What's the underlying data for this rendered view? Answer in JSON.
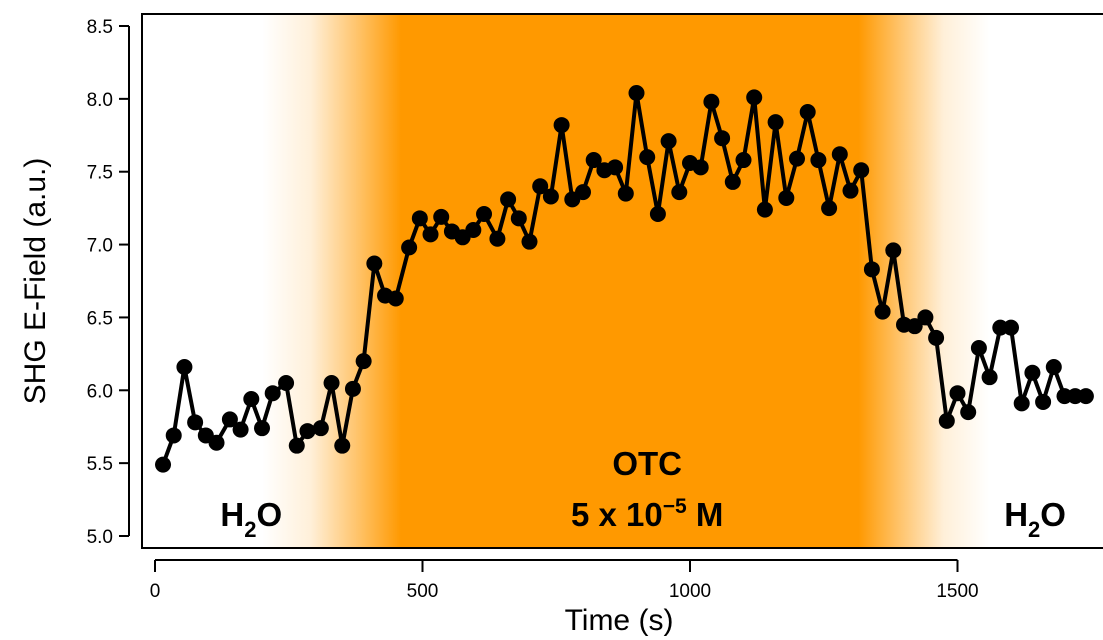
{
  "chart_data": {
    "type": "line",
    "xlabel": "Time (s)",
    "ylabel": "SHG E-Field (a.u.)",
    "xlim": [
      -20,
      1750
    ],
    "ylim": [
      4.97,
      8.6
    ],
    "xticks": [
      0,
      500,
      1000,
      1500
    ],
    "xtick_labels": [
      "0",
      "500",
      "1000",
      "1500"
    ],
    "yticks": [
      5.0,
      5.5,
      6.0,
      6.5,
      7.0,
      7.5,
      8.0,
      8.5
    ],
    "ytick_labels": [
      "5.0",
      "5.5",
      "6.0",
      "6.5",
      "7.0",
      "7.5",
      "8.0",
      "8.5"
    ],
    "grid": false,
    "series": [
      {
        "marker": "circle",
        "color": "#000000",
        "x": [
          15,
          35,
          55,
          75,
          95,
          115,
          140,
          160,
          180,
          200,
          220,
          245,
          265,
          285,
          310,
          330,
          350,
          370,
          390,
          410,
          430,
          450,
          475,
          495,
          515,
          535,
          555,
          575,
          595,
          615,
          640,
          660,
          680,
          700,
          720,
          740,
          760,
          780,
          800,
          820,
          840,
          860,
          880,
          900,
          920,
          940,
          960,
          980,
          1000,
          1020,
          1040,
          1060,
          1080,
          1100,
          1120,
          1140,
          1160,
          1180,
          1200,
          1220,
          1240,
          1260,
          1280,
          1300,
          1320,
          1340,
          1360,
          1380,
          1400,
          1420,
          1440,
          1460,
          1480,
          1500,
          1520,
          1540,
          1560,
          1580,
          1600,
          1620,
          1640,
          1660,
          1680,
          1700,
          1720,
          1740
        ],
        "y": [
          5.49,
          5.69,
          6.16,
          5.78,
          5.69,
          5.64,
          5.8,
          5.73,
          5.94,
          5.74,
          5.98,
          6.05,
          5.62,
          5.72,
          5.74,
          6.05,
          5.62,
          6.01,
          6.2,
          6.87,
          6.65,
          6.63,
          6.98,
          7.18,
          7.07,
          7.19,
          7.09,
          7.05,
          7.1,
          7.21,
          7.04,
          7.31,
          7.18,
          7.02,
          7.4,
          7.33,
          7.82,
          7.31,
          7.36,
          7.58,
          7.51,
          7.53,
          7.35,
          8.04,
          7.6,
          7.21,
          7.71,
          7.36,
          7.56,
          7.53,
          7.98,
          7.73,
          7.43,
          7.58,
          8.01,
          7.24,
          7.84,
          7.32,
          7.59,
          7.91,
          7.58,
          7.25,
          7.62,
          7.37,
          7.51,
          6.83,
          6.54,
          6.96,
          6.45,
          6.44,
          6.5,
          6.36,
          5.79,
          5.98,
          5.85,
          6.29,
          6.09,
          6.43,
          6.43,
          5.91,
          6.12,
          5.92,
          6.16,
          5.96,
          5.96,
          5.96
        ]
      }
    ],
    "regions": [
      {
        "color": "#ff9900",
        "fade_in": [
          200,
          460
        ],
        "solid": [
          460,
          1315
        ],
        "fade_out": [
          1315,
          1560
        ]
      }
    ],
    "annotations": [
      {
        "id": "h2o-left",
        "x": 180,
        "y": 5.15,
        "main": "H",
        "sub": "2",
        "tail": "O"
      },
      {
        "id": "otc",
        "x": 920,
        "lines": [
          {
            "y": 5.5,
            "text": "OTC"
          },
          {
            "y": 5.15,
            "text": "5 x 10",
            "sup": "−5",
            "tail": " M"
          }
        ]
      },
      {
        "id": "h2o-right",
        "x": 1645,
        "y": 5.15,
        "main": "H",
        "sub": "2",
        "tail": "O"
      }
    ]
  }
}
